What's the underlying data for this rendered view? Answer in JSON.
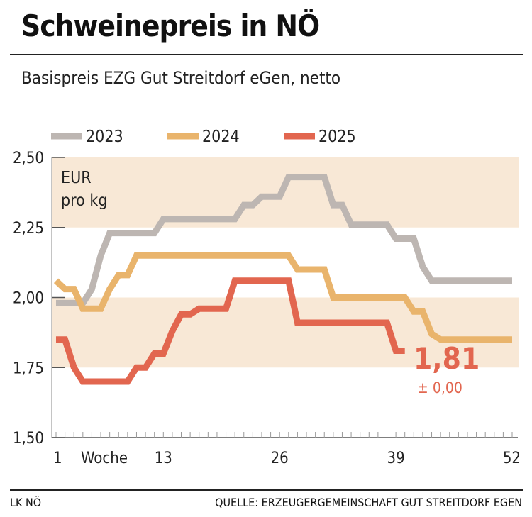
{
  "title": "Schweinepreis in NÖ",
  "subtitle": "Basispreis EZG Gut Streitdorf eGen, netto",
  "footer": {
    "left": "LK NÖ",
    "right": "QUELLE: ERZEUGERGEMEINSCHAFT GUT STREITDORF EGEN"
  },
  "chart_data": {
    "type": "line",
    "title": "Schweinepreis in NÖ",
    "ylabel": "EUR pro kg",
    "xlabel": "Woche",
    "ylim": [
      1.5,
      2.5
    ],
    "xlim": [
      1,
      52
    ],
    "yticks": [
      {
        "v": 2.5,
        "label": "2,50"
      },
      {
        "v": 2.25,
        "label": "2,25"
      },
      {
        "v": 2.0,
        "label": "2,00"
      },
      {
        "v": 1.75,
        "label": "1,75"
      },
      {
        "v": 1.5,
        "label": "1,50"
      }
    ],
    "xticks": [
      {
        "v": 1,
        "label": "1"
      },
      {
        "v": 13,
        "label": "13"
      },
      {
        "v": 26,
        "label": "26"
      },
      {
        "v": 39,
        "label": "39"
      },
      {
        "v": 52,
        "label": "52"
      }
    ],
    "legend_position": "top",
    "annotation": {
      "value": "1,81",
      "change": "± 0,00"
    },
    "series": [
      {
        "name": "2023",
        "color": "#bdb6b2",
        "values": [
          1.98,
          1.98,
          1.98,
          1.98,
          2.03,
          2.15,
          2.23,
          2.23,
          2.23,
          2.23,
          2.23,
          2.23,
          2.28,
          2.28,
          2.28,
          2.28,
          2.28,
          2.28,
          2.28,
          2.28,
          2.28,
          2.33,
          2.33,
          2.36,
          2.36,
          2.36,
          2.43,
          2.43,
          2.43,
          2.43,
          2.43,
          2.33,
          2.33,
          2.26,
          2.26,
          2.26,
          2.26,
          2.26,
          2.21,
          2.21,
          2.21,
          2.11,
          2.06,
          2.06,
          2.06,
          2.06,
          2.06,
          2.06,
          2.06,
          2.06,
          2.06,
          2.06
        ]
      },
      {
        "name": "2024",
        "color": "#e9b46c",
        "values": [
          2.06,
          2.03,
          2.03,
          1.96,
          1.96,
          1.96,
          2.03,
          2.08,
          2.08,
          2.15,
          2.15,
          2.15,
          2.15,
          2.15,
          2.15,
          2.15,
          2.15,
          2.15,
          2.15,
          2.15,
          2.15,
          2.15,
          2.15,
          2.15,
          2.15,
          2.15,
          2.15,
          2.1,
          2.1,
          2.1,
          2.1,
          2.0,
          2.0,
          2.0,
          2.0,
          2.0,
          2.0,
          2.0,
          2.0,
          2.0,
          1.95,
          1.95,
          1.87,
          1.85,
          1.85,
          1.85,
          1.85,
          1.85,
          1.85,
          1.85,
          1.85,
          1.85
        ]
      },
      {
        "name": "2025",
        "color": "#e2664f",
        "values": [
          1.85,
          1.85,
          1.75,
          1.7,
          1.7,
          1.7,
          1.7,
          1.7,
          1.7,
          1.75,
          1.75,
          1.8,
          1.8,
          1.88,
          1.94,
          1.94,
          1.96,
          1.96,
          1.96,
          1.96,
          2.06,
          2.06,
          2.06,
          2.06,
          2.06,
          2.06,
          2.06,
          1.91,
          1.91,
          1.91,
          1.91,
          1.91,
          1.91,
          1.91,
          1.91,
          1.91,
          1.91,
          1.91,
          1.81,
          1.81
        ]
      }
    ]
  }
}
